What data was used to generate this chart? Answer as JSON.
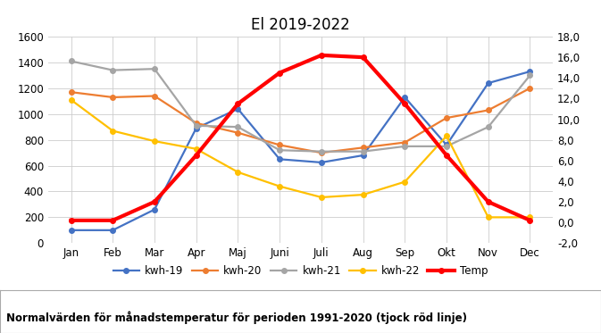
{
  "title": "El 2019-2022",
  "months": [
    "Jan",
    "Feb",
    "Mar",
    "Apr",
    "Maj",
    "Juni",
    "Juli",
    "Aug",
    "Sep",
    "Okt",
    "Nov",
    "Dec"
  ],
  "kwh19": [
    100,
    100,
    260,
    890,
    1040,
    650,
    625,
    680,
    1130,
    760,
    1240,
    1330
  ],
  "kwh20": [
    1170,
    1130,
    1140,
    930,
    855,
    760,
    700,
    740,
    780,
    970,
    1030,
    1200
  ],
  "kwh21": [
    1410,
    1340,
    1350,
    910,
    900,
    720,
    710,
    710,
    750,
    750,
    900,
    1300
  ],
  "kwh22": [
    1110,
    870,
    790,
    730,
    550,
    440,
    355,
    375,
    475,
    830,
    200,
    200
  ],
  "temp": [
    0.2,
    0.2,
    2.0,
    6.5,
    11.5,
    14.5,
    16.2,
    16.0,
    11.5,
    6.5,
    2.0,
    0.2
  ],
  "color_19": "#4472C4",
  "color_20": "#ED7D31",
  "color_21": "#A5A5A5",
  "color_22": "#FFC000",
  "color_temp": "#FF0000",
  "ylim_left": [
    0,
    1600
  ],
  "ylim_right": [
    -2.0,
    18.0
  ],
  "yticks_left": [
    0,
    200,
    400,
    600,
    800,
    1000,
    1200,
    1400,
    1600
  ],
  "yticks_right": [
    -2.0,
    0.0,
    2.0,
    4.0,
    6.0,
    8.0,
    10.0,
    12.0,
    14.0,
    16.0,
    18.0
  ],
  "footnote": "Normalvärden för månadstemperatur för perioden 1991-2020 (tjock röd linje)"
}
